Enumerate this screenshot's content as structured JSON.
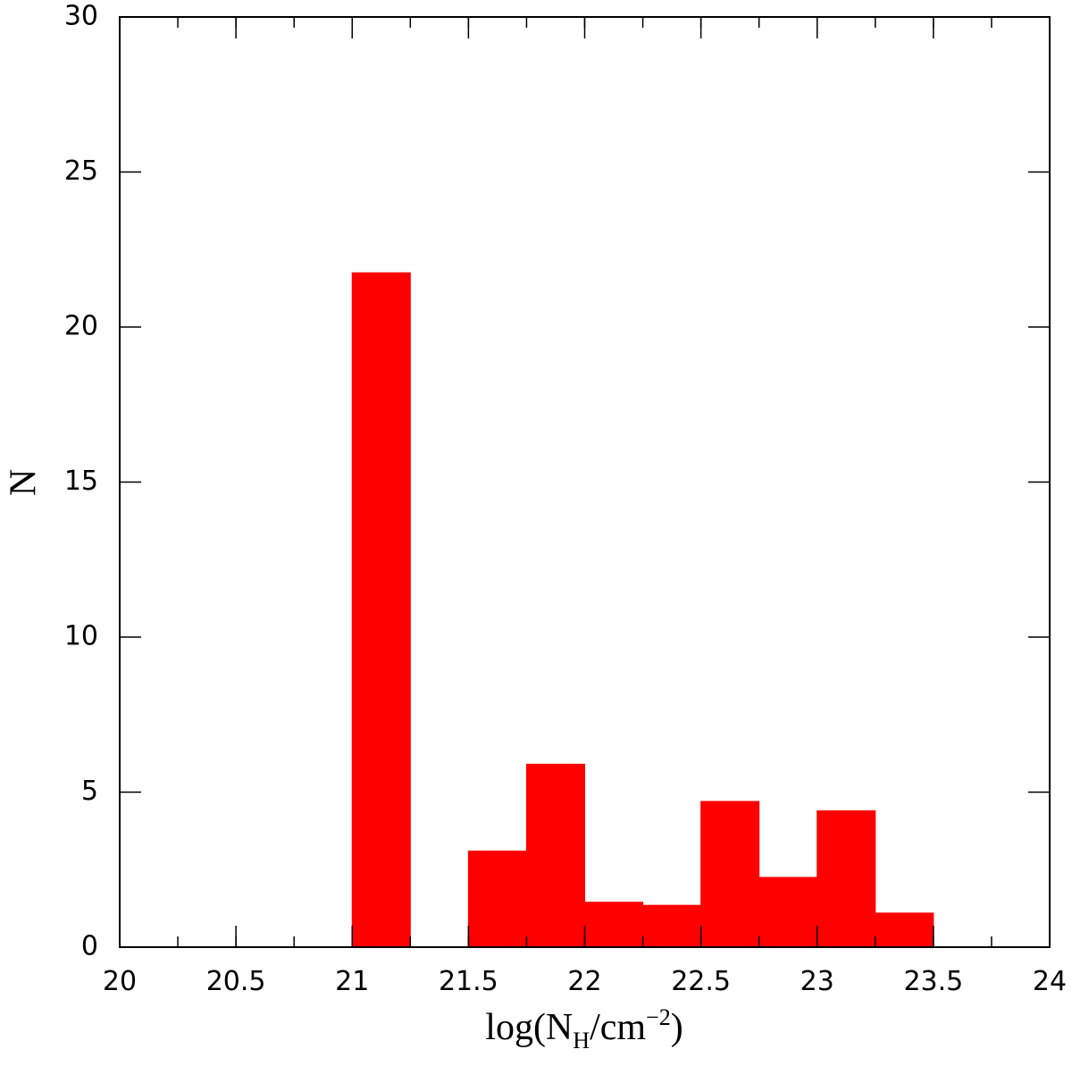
{
  "chart_data": {
    "type": "histogram",
    "bins": [
      20,
      20.25,
      20.5,
      20.75,
      21,
      21.25,
      21.5,
      21.75,
      22,
      22.25,
      22.5,
      22.75,
      23,
      23.25,
      23.5,
      23.75,
      24
    ],
    "values": [
      0,
      0,
      0,
      0,
      21.75,
      0,
      3.1,
      5.9,
      1.45,
      1.35,
      4.7,
      2.25,
      4.4,
      1.1,
      0,
      0
    ],
    "color": "#ff0000",
    "xlim": [
      20,
      24
    ],
    "ylim": [
      0,
      30
    ],
    "xticks": [
      20,
      20.5,
      21,
      21.5,
      22,
      22.5,
      23,
      23.5,
      24
    ],
    "yticks": [
      0,
      5,
      10,
      15,
      20,
      25,
      30
    ],
    "x_label": [
      "log(N",
      "H",
      "/cm",
      "−2",
      ")"
    ],
    "y_label": "N"
  }
}
